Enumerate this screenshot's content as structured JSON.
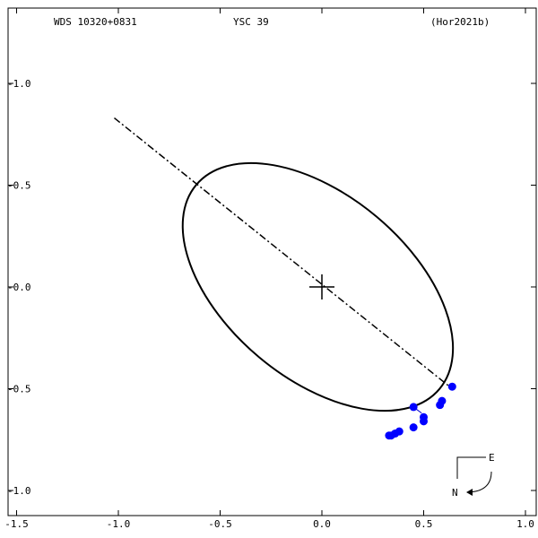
{
  "header": {
    "left": "WDS 10320+0831",
    "center": "YSC  39",
    "right": "(Hor2021b)"
  },
  "chart_data": {
    "type": "scatter",
    "title": "",
    "xlim": [
      -1.5,
      1.0
    ],
    "ylim": [
      1.2,
      -1.2
    ],
    "x_ticks": [
      "-1.5",
      "-1.0",
      "-0.5",
      "0.0",
      "0.5",
      "1.0"
    ],
    "y_ticks": [
      "-1.0",
      "-0.5",
      "-0.0",
      "-0.5",
      "-1.0"
    ],
    "y_tick_values": [
      -1.0,
      -0.5,
      0.0,
      0.5,
      1.0
    ],
    "orbit_ellipse": {
      "center": [
        -0.02,
        0.0
      ],
      "semi_major": 0.78,
      "semi_minor": 0.45,
      "angle_deg": 40
    },
    "line_of_nodes": [
      [
        -1.02,
        -0.83
      ],
      [
        0.64,
        0.5
      ]
    ],
    "primary_star": [
      0.0,
      0.0
    ],
    "observations": [
      {
        "obs": [
          0.45,
          0.59
        ],
        "model": [
          0.49,
          0.62
        ]
      },
      {
        "obs": [
          0.58,
          0.58
        ],
        "model": [
          0.58,
          0.57
        ]
      },
      {
        "obs": [
          0.59,
          0.56
        ],
        "model": [
          0.6,
          0.56
        ]
      },
      {
        "obs": [
          0.64,
          0.49
        ],
        "model": [
          0.64,
          0.5
        ]
      },
      {
        "obs": [
          0.5,
          0.64
        ],
        "model": [
          0.5,
          0.64
        ]
      },
      {
        "obs": [
          0.5,
          0.66
        ],
        "model": [
          0.5,
          0.66
        ]
      },
      {
        "obs": [
          0.45,
          0.69
        ],
        "model": [
          0.45,
          0.69
        ]
      },
      {
        "obs": [
          0.38,
          0.71
        ],
        "model": [
          0.38,
          0.71
        ]
      },
      {
        "obs": [
          0.36,
          0.72
        ],
        "model": [
          0.36,
          0.72
        ]
      },
      {
        "obs": [
          0.34,
          0.73
        ],
        "model": [
          0.34,
          0.73
        ]
      },
      {
        "obs": [
          0.33,
          0.73
        ],
        "model": [
          0.33,
          0.73
        ]
      }
    ],
    "point_color": "#0000ff",
    "line_color": "#000000"
  },
  "compass": {
    "east": "E",
    "north": "N"
  }
}
